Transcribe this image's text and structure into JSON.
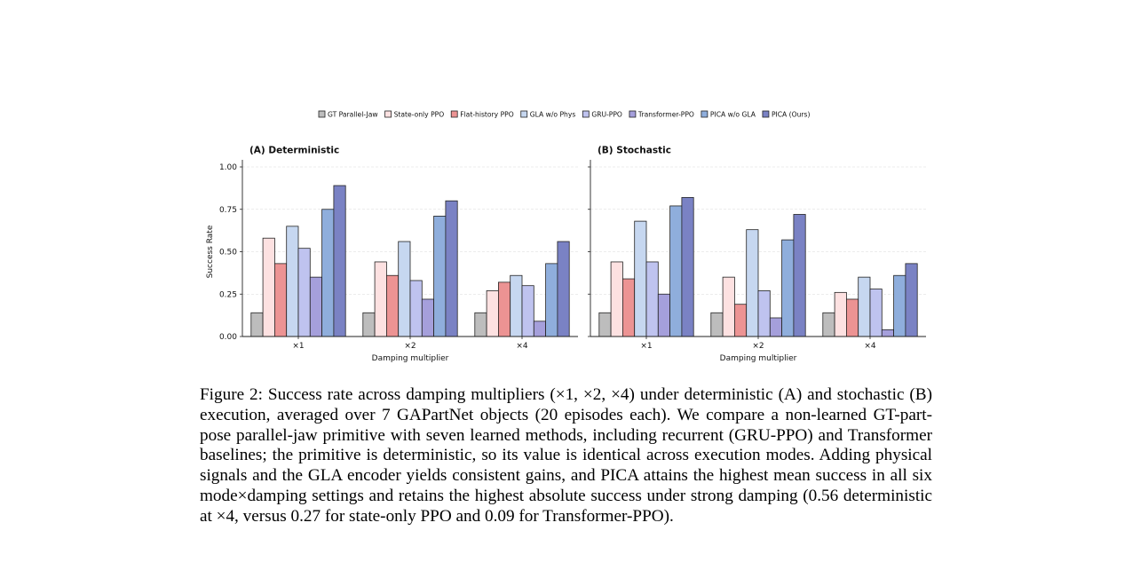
{
  "legend": [
    {
      "label": "GT Parallel-Jaw",
      "color": "#bdbdbd"
    },
    {
      "label": "State-only PPO",
      "color": "#fde1e1"
    },
    {
      "label": "Flat-history PPO",
      "color": "#ec9393"
    },
    {
      "label": "GLA w/o Phys",
      "color": "#c6d7f0"
    },
    {
      "label": "GRU-PPO",
      "color": "#bfc3ef"
    },
    {
      "label": "Transformer-PPO",
      "color": "#a59fdb"
    },
    {
      "label": "PICA w/o GLA",
      "color": "#8faedc"
    },
    {
      "label": "PICA (Ours)",
      "color": "#7a82c4"
    }
  ],
  "chart_data": [
    {
      "type": "bar",
      "title": "(A) Deterministic",
      "xlabel": "Damping multiplier",
      "ylabel": "Success Rate",
      "ylim": [
        0,
        1.0
      ],
      "yticks": [
        "0.00",
        "0.25",
        "0.50",
        "0.75",
        "1.00"
      ],
      "categories": [
        "×1",
        "×2",
        "×4"
      ],
      "grid": true,
      "series": [
        {
          "name": "GT Parallel-Jaw",
          "values": [
            0.14,
            0.14,
            0.14
          ]
        },
        {
          "name": "State-only PPO",
          "values": [
            0.58,
            0.44,
            0.27
          ]
        },
        {
          "name": "Flat-history PPO",
          "values": [
            0.43,
            0.36,
            0.32
          ]
        },
        {
          "name": "GLA w/o Phys",
          "values": [
            0.65,
            0.56,
            0.36
          ]
        },
        {
          "name": "GRU-PPO",
          "values": [
            0.52,
            0.33,
            0.3
          ]
        },
        {
          "name": "Transformer-PPO",
          "values": [
            0.35,
            0.22,
            0.09
          ]
        },
        {
          "name": "PICA w/o GLA",
          "values": [
            0.75,
            0.71,
            0.43
          ]
        },
        {
          "name": "PICA (Ours)",
          "values": [
            0.89,
            0.8,
            0.56
          ]
        }
      ]
    },
    {
      "type": "bar",
      "title": "(B) Stochastic",
      "xlabel": "Damping multiplier",
      "ylabel": "",
      "ylim": [
        0,
        1.0
      ],
      "categories": [
        "×1",
        "×2",
        "×4"
      ],
      "grid": true,
      "series": [
        {
          "name": "GT Parallel-Jaw",
          "values": [
            0.14,
            0.14,
            0.14
          ]
        },
        {
          "name": "State-only PPO",
          "values": [
            0.44,
            0.35,
            0.26
          ]
        },
        {
          "name": "Flat-history PPO",
          "values": [
            0.34,
            0.19,
            0.22
          ]
        },
        {
          "name": "GLA w/o Phys",
          "values": [
            0.68,
            0.63,
            0.35
          ]
        },
        {
          "name": "GRU-PPO",
          "values": [
            0.44,
            0.27,
            0.28
          ]
        },
        {
          "name": "Transformer-PPO",
          "values": [
            0.25,
            0.11,
            0.04
          ]
        },
        {
          "name": "PICA w/o GLA",
          "values": [
            0.77,
            0.57,
            0.36
          ]
        },
        {
          "name": "PICA (Ours)",
          "values": [
            0.82,
            0.72,
            0.43
          ]
        }
      ]
    }
  ],
  "caption": {
    "text": "Figure 2: Success rate across damping multipliers (×1, ×2, ×4) under deterministic (A) and stochastic (B) execution, averaged over 7 GAPartNet objects (20 episodes each). We compare a non-learned GT-part-pose parallel-jaw primitive with seven learned methods, including recurrent (GRU-PPO) and Transformer baselines; the primitive is deterministic, so its value is identical across execution modes. Adding physical signals and the GLA encoder yields consistent gains, and PICA attains the highest mean success in all six mode×damping settings and retains the highest absolute success under strong damping (0.56 deterministic at ×4, versus 0.27 for state-only PPO and 0.09 for Transformer-PPO)."
  }
}
